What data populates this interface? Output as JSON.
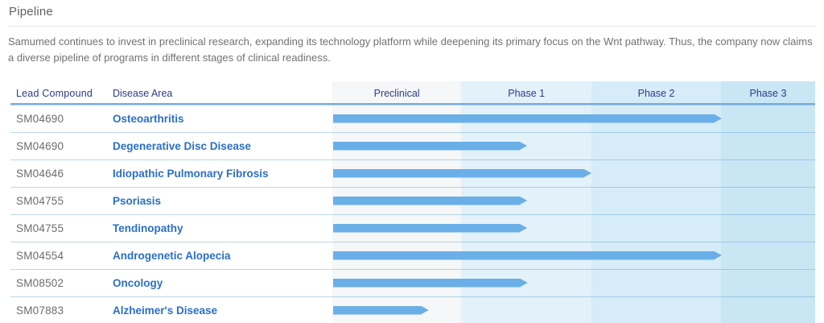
{
  "page": {
    "title": "Pipeline",
    "description": "Samumed continues to invest in preclinical research, expanding its technology platform while deepening its primary focus on the Wnt pathway. Thus, the company now claims a diverse pipeline of programs in different stages of clinical readiness."
  },
  "chart_data": {
    "type": "table",
    "title": "Pipeline",
    "column_headers": {
      "lead_compound": "Lead Compound",
      "disease_area": "Disease Area"
    },
    "phases": [
      "Preclinical",
      "Phase 1",
      "Phase 2",
      "Phase 3"
    ],
    "phase_widths_pct": [
      26.7,
      27.0,
      26.8,
      19.5
    ],
    "rows": [
      {
        "compound": "SM04690",
        "disease": "Osteoarthritis",
        "progress_pct": 80.5,
        "stage": "Phase 2 completed"
      },
      {
        "compound": "SM04690",
        "disease": "Degenerative Disc Disease",
        "progress_pct": 40.2,
        "stage": "Phase 1 (mid)"
      },
      {
        "compound": "SM04646",
        "disease": "Idiopathic Pulmonary Fibrosis",
        "progress_pct": 53.5,
        "stage": "Phase 1 completed"
      },
      {
        "compound": "SM04755",
        "disease": "Psoriasis",
        "progress_pct": 40.2,
        "stage": "Phase 1 (mid)"
      },
      {
        "compound": "SM04755",
        "disease": "Tendinopathy",
        "progress_pct": 40.2,
        "stage": "Phase 1 (mid)"
      },
      {
        "compound": "SM04554",
        "disease": "Androgenetic Alopecia",
        "progress_pct": 80.5,
        "stage": "Phase 2 completed"
      },
      {
        "compound": "SM08502",
        "disease": "Oncology",
        "progress_pct": 40.3,
        "stage": "Phase 1 (mid)"
      },
      {
        "compound": "SM07883",
        "disease": "Alzheimer's Disease",
        "progress_pct": 19.8,
        "stage": "Preclinical (late)"
      }
    ],
    "colors": {
      "bar": "#6bafe8",
      "phase_backgrounds": [
        "#f5f7f8",
        "#e2f1fa",
        "#d6ecf8",
        "#c9e6f5"
      ],
      "header_text": "#2e3a8c",
      "disease_text": "#2a6fc9",
      "compound_text": "#6b6c6e"
    },
    "layout_hints": {
      "grid": "off",
      "legend": "none",
      "bar_style": "arrow-right"
    }
  }
}
